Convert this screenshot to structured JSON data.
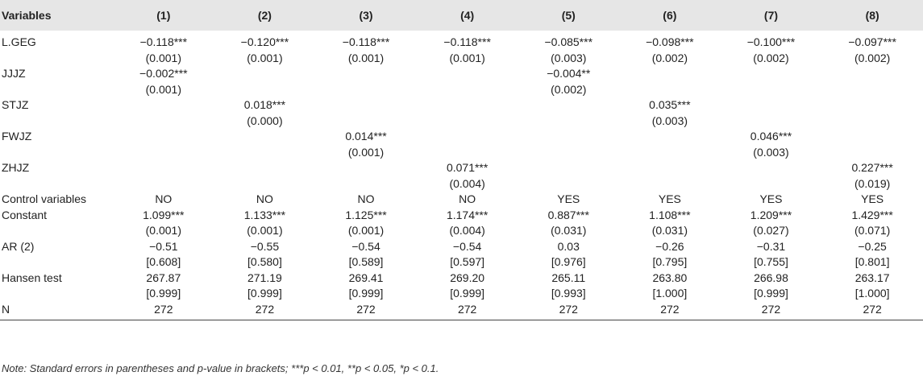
{
  "table": {
    "headers": [
      "Variables",
      "(1)",
      "(2)",
      "(3)",
      "(4)",
      "(5)",
      "(6)",
      "(7)",
      "(8)"
    ],
    "rows": [
      {
        "label": "L.GEG",
        "cells": [
          [
            "−0.118***",
            "(0.001)"
          ],
          [
            "−0.120***",
            "(0.001)"
          ],
          [
            "−0.118***",
            "(0.001)"
          ],
          [
            "−0.118***",
            "(0.001)"
          ],
          [
            "−0.085***",
            "(0.003)"
          ],
          [
            "−0.098***",
            "(0.002)"
          ],
          [
            "−0.100***",
            "(0.002)"
          ],
          [
            "−0.097***",
            "(0.002)"
          ]
        ]
      },
      {
        "label": "JJJZ",
        "cells": [
          [
            "−0.002***",
            "(0.001)"
          ],
          [
            "",
            ""
          ],
          [
            "",
            ""
          ],
          [
            "",
            ""
          ],
          [
            "−0.004**",
            "(0.002)"
          ],
          [
            "",
            ""
          ],
          [
            "",
            ""
          ],
          [
            "",
            ""
          ]
        ]
      },
      {
        "label": "STJZ",
        "cells": [
          [
            "",
            ""
          ],
          [
            "0.018***",
            "(0.000)"
          ],
          [
            "",
            ""
          ],
          [
            "",
            ""
          ],
          [
            "",
            ""
          ],
          [
            "0.035***",
            "(0.003)"
          ],
          [
            "",
            ""
          ],
          [
            "",
            ""
          ]
        ]
      },
      {
        "label": "FWJZ",
        "cells": [
          [
            "",
            ""
          ],
          [
            "",
            ""
          ],
          [
            "0.014***",
            "(0.001)"
          ],
          [
            "",
            ""
          ],
          [
            "",
            ""
          ],
          [
            "",
            ""
          ],
          [
            "0.046***",
            "(0.003)"
          ],
          [
            "",
            ""
          ]
        ]
      },
      {
        "label": "ZHJZ",
        "cells": [
          [
            "",
            ""
          ],
          [
            "",
            ""
          ],
          [
            "",
            ""
          ],
          [
            "0.071***",
            "(0.004)"
          ],
          [
            "",
            ""
          ],
          [
            "",
            ""
          ],
          [
            "",
            ""
          ],
          [
            "0.227***",
            "(0.019)"
          ]
        ]
      },
      {
        "label": "Control variables",
        "cells": [
          [
            "NO"
          ],
          [
            "NO"
          ],
          [
            "NO"
          ],
          [
            "NO"
          ],
          [
            "YES"
          ],
          [
            "YES"
          ],
          [
            "YES"
          ],
          [
            "YES"
          ]
        ]
      },
      {
        "label": "Constant",
        "cells": [
          [
            "1.099***",
            "(0.001)"
          ],
          [
            "1.133***",
            "(0.001)"
          ],
          [
            "1.125***",
            "(0.001)"
          ],
          [
            "1.174***",
            "(0.004)"
          ],
          [
            "0.887***",
            "(0.031)"
          ],
          [
            "1.108***",
            "(0.031)"
          ],
          [
            "1.209***",
            "(0.027)"
          ],
          [
            "1.429***",
            "(0.071)"
          ]
        ]
      },
      {
        "label": "AR (2)",
        "cells": [
          [
            "−0.51",
            "[0.608]"
          ],
          [
            "−0.55",
            "[0.580]"
          ],
          [
            "−0.54",
            "[0.589]"
          ],
          [
            "−0.54",
            "[0.597]"
          ],
          [
            "0.03",
            "[0.976]"
          ],
          [
            "−0.26",
            "[0.795]"
          ],
          [
            "−0.31",
            "[0.755]"
          ],
          [
            "−0.25",
            "[0.801]"
          ]
        ]
      },
      {
        "label": "Hansen test",
        "cells": [
          [
            "267.87",
            "[0.999]"
          ],
          [
            "271.19",
            "[0.999]"
          ],
          [
            "269.41",
            "[0.999]"
          ],
          [
            "269.20",
            "[0.999]"
          ],
          [
            "265.11",
            "[0.993]"
          ],
          [
            "263.80",
            "[1.000]"
          ],
          [
            "266.98",
            "[0.999]"
          ],
          [
            "263.17",
            "[1.000]"
          ]
        ]
      },
      {
        "label": "N",
        "cells": [
          [
            "272"
          ],
          [
            "272"
          ],
          [
            "272"
          ],
          [
            "272"
          ],
          [
            "272"
          ],
          [
            "272"
          ],
          [
            "272"
          ],
          [
            "272"
          ]
        ]
      }
    ]
  },
  "note": "Note: Standard errors in parentheses and p-value in brackets; ***p < 0.01, **p < 0.05, *p < 0.1."
}
